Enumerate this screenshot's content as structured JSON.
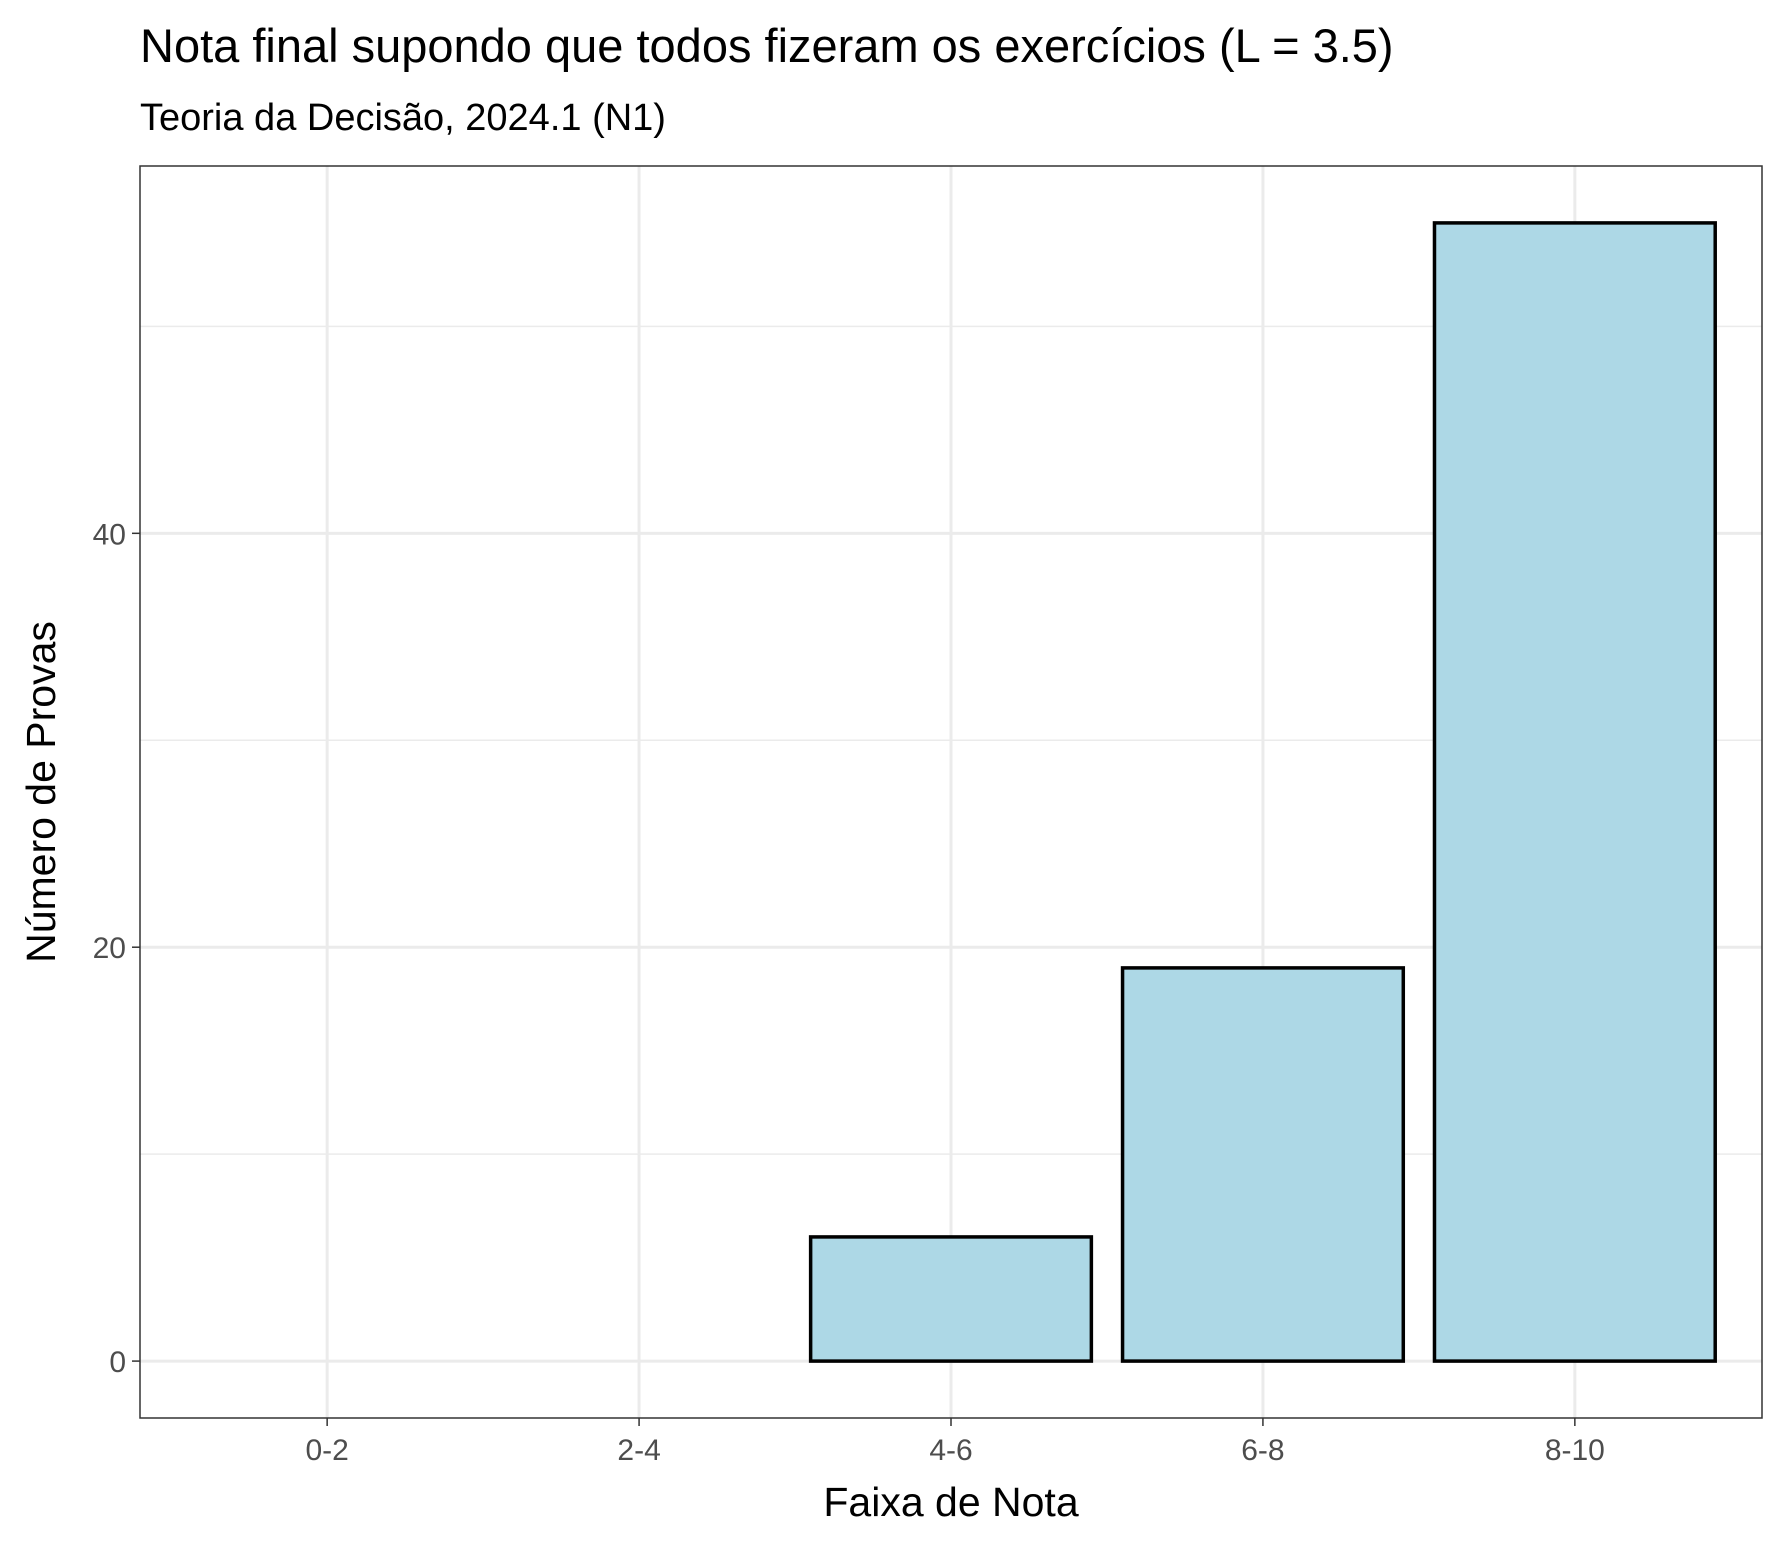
{
  "chart_data": {
    "type": "bar",
    "title": "Nota final supondo que todos fizeram os exercícios (L = 3.5)",
    "subtitle": "Teoria da Decisão, 2024.1 (N1)",
    "xlabel": "Faixa de Nota",
    "ylabel": "Número de Provas",
    "categories": [
      "0-2",
      "2-4",
      "4-6",
      "6-8",
      "8-10"
    ],
    "values": [
      0,
      0,
      6,
      19,
      55
    ],
    "ylim": [
      -2.75,
      57.75
    ],
    "yticks": [
      0,
      20,
      40
    ],
    "grid": true,
    "colors": {
      "bar_fill": "#add8e6",
      "bar_stroke": "#000000",
      "grid": "#ebebeb",
      "panel_border": "#333333"
    }
  }
}
